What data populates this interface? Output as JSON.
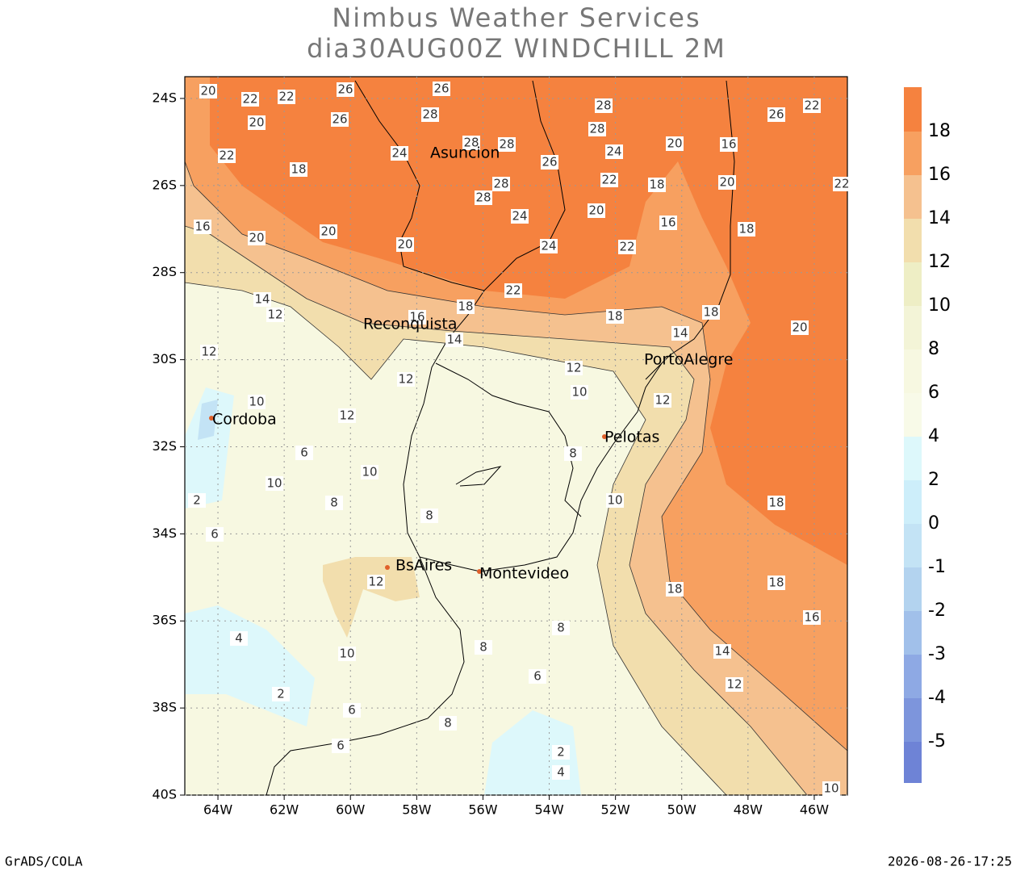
{
  "header": {
    "title": "Nimbus Weather Services",
    "subtitle": "dia30AUG00Z WINDCHILL 2M"
  },
  "map": {
    "xlim": [
      -65,
      -45
    ],
    "ylim": [
      -40,
      -23.5
    ],
    "xticks": [
      {
        "value": -64,
        "label": "64W"
      },
      {
        "value": -62,
        "label": "62W"
      },
      {
        "value": -60,
        "label": "60W"
      },
      {
        "value": -58,
        "label": "58W"
      },
      {
        "value": -56,
        "label": "56W"
      },
      {
        "value": -54,
        "label": "54W"
      },
      {
        "value": -52,
        "label": "52W"
      },
      {
        "value": -50,
        "label": "50W"
      },
      {
        "value": -48,
        "label": "48W"
      },
      {
        "value": -46,
        "label": "46W"
      }
    ],
    "yticks": [
      {
        "value": -24,
        "label": "24S"
      },
      {
        "value": -26,
        "label": "26S"
      },
      {
        "value": -28,
        "label": "28S"
      },
      {
        "value": -30,
        "label": "30S"
      },
      {
        "value": -32,
        "label": "32S"
      },
      {
        "value": -34,
        "label": "34S"
      },
      {
        "value": -36,
        "label": "36S"
      },
      {
        "value": -38,
        "label": "38S"
      },
      {
        "value": -40,
        "label": "40S"
      }
    ],
    "grid": true,
    "cities": [
      "Asuncion",
      "Reconquista",
      "PortoAlegre",
      "Cordoba",
      "Pelotas",
      "BsAires",
      "Montevideo"
    ],
    "contour_labels": [
      20,
      22,
      22,
      26,
      26,
      20,
      22,
      18,
      28,
      28,
      28,
      26,
      24,
      26,
      28,
      28,
      24,
      28,
      28,
      24,
      22,
      20,
      18,
      16,
      20,
      16,
      20,
      18,
      26,
      22,
      22,
      16,
      20,
      20,
      20,
      24,
      22,
      22,
      18,
      16,
      14,
      12,
      18,
      18,
      14,
      20,
      14,
      12,
      10,
      12,
      12,
      12,
      10,
      12,
      6,
      8,
      10,
      10,
      2,
      8,
      8,
      10,
      18,
      6,
      12,
      18,
      18,
      16,
      4,
      8,
      8,
      10,
      14,
      6,
      12,
      2,
      6,
      8,
      6,
      2,
      4,
      10
    ]
  },
  "colorbar": {
    "levels": [
      18,
      16,
      14,
      12,
      10,
      8,
      6,
      4,
      2,
      0,
      -1,
      -2,
      -3,
      -4,
      -5
    ],
    "colors": [
      "#f5823f",
      "#f7a060",
      "#f5c18f",
      "#f2dead",
      "#eeeec5",
      "#f3f4d7",
      "#f7f8e1",
      "#f8fae8",
      "#ddf8fb",
      "#cdeefa",
      "#c3e3f5",
      "#b3d3ef",
      "#a1c0ea",
      "#8ea9e4",
      "#7d95dc",
      "#6e83d6"
    ]
  },
  "footer": {
    "left": "GrADS/COLA",
    "right": "2026-08-26-17:25"
  }
}
